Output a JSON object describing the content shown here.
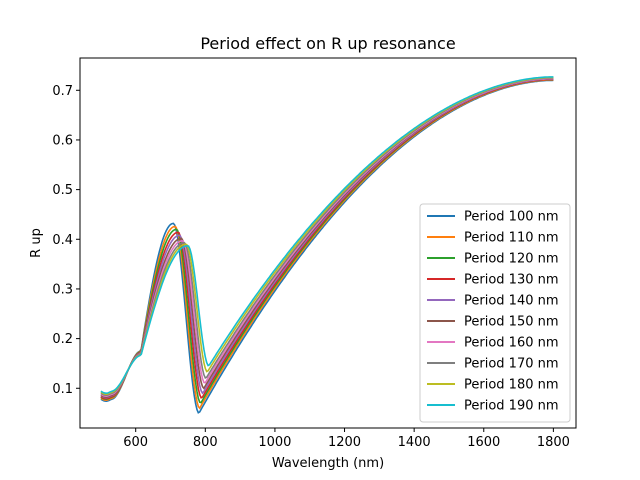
{
  "chart_data": {
    "type": "line",
    "title": "Period effect on R up resonance",
    "xlabel": "Wavelength (nm)",
    "ylabel": "R up",
    "xlim": [
      440,
      1865
    ],
    "ylim": [
      0.02,
      0.765
    ],
    "xticks": [
      600,
      800,
      1000,
      1200,
      1400,
      1600,
      1800
    ],
    "yticks": [
      0.1,
      0.2,
      0.3,
      0.4,
      0.5,
      0.6,
      0.7
    ],
    "legend": "lower-right",
    "grid": false,
    "series": [
      {
        "name": "Period 100 nm",
        "color": "#1f77b4",
        "peak_x": 708,
        "peak_y": 0.432,
        "dip_x": 782,
        "dip_y": 0.05,
        "start_y": 0.078,
        "knee_y": 0.175,
        "end_y": 0.72
      },
      {
        "name": "Period 110 nm",
        "color": "#ff7f0e",
        "peak_x": 713,
        "peak_y": 0.426,
        "dip_x": 784,
        "dip_y": 0.06,
        "start_y": 0.08,
        "knee_y": 0.174,
        "end_y": 0.721
      },
      {
        "name": "Period 120 nm",
        "color": "#2ca02c",
        "peak_x": 717,
        "peak_y": 0.42,
        "dip_x": 787,
        "dip_y": 0.07,
        "start_y": 0.082,
        "knee_y": 0.173,
        "end_y": 0.722
      },
      {
        "name": "Period 130 nm",
        "color": "#d62728",
        "peak_x": 722,
        "peak_y": 0.414,
        "dip_x": 790,
        "dip_y": 0.08,
        "start_y": 0.083,
        "knee_y": 0.172,
        "end_y": 0.722
      },
      {
        "name": "Period 140 nm",
        "color": "#9467bd",
        "peak_x": 726,
        "peak_y": 0.408,
        "dip_x": 793,
        "dip_y": 0.09,
        "start_y": 0.085,
        "knee_y": 0.171,
        "end_y": 0.723
      },
      {
        "name": "Period 150 nm",
        "color": "#8c564b",
        "peak_x": 731,
        "peak_y": 0.402,
        "dip_x": 796,
        "dip_y": 0.1,
        "start_y": 0.086,
        "knee_y": 0.17,
        "end_y": 0.724
      },
      {
        "name": "Period 160 nm",
        "color": "#e377c2",
        "peak_x": 735,
        "peak_y": 0.397,
        "dip_x": 799,
        "dip_y": 0.11,
        "start_y": 0.088,
        "knee_y": 0.169,
        "end_y": 0.724
      },
      {
        "name": "Period 170 nm",
        "color": "#7f7f7f",
        "peak_x": 740,
        "peak_y": 0.393,
        "dip_x": 802,
        "dip_y": 0.12,
        "start_y": 0.09,
        "knee_y": 0.168,
        "end_y": 0.725
      },
      {
        "name": "Period 180 nm",
        "color": "#bcbd22",
        "peak_x": 745,
        "peak_y": 0.39,
        "dip_x": 806,
        "dip_y": 0.133,
        "start_y": 0.092,
        "knee_y": 0.167,
        "end_y": 0.726
      },
      {
        "name": "Period 190 nm",
        "color": "#17becf",
        "peak_x": 750,
        "peak_y": 0.387,
        "dip_x": 810,
        "dip_y": 0.145,
        "start_y": 0.094,
        "knee_y": 0.166,
        "end_y": 0.727
      }
    ]
  }
}
